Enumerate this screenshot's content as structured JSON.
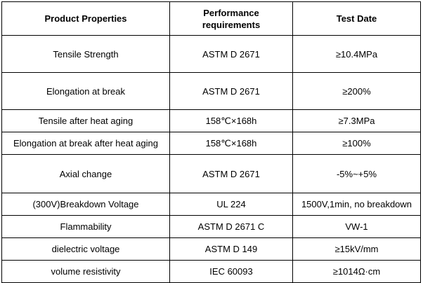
{
  "table": {
    "headers": {
      "col1": "Product Properties",
      "col2_line1": "Performance",
      "col2_line2": "requirements",
      "col3": "Test Date"
    },
    "rows": [
      {
        "property": "Tensile Strength",
        "requirement": "ASTM D 2671",
        "test": "≥10.4MPa"
      },
      {
        "property": "Elongation at break",
        "requirement": "ASTM D 2671",
        "test": "≥200%"
      },
      {
        "property": "Tensile after heat aging",
        "requirement": "158℃×168h",
        "test": "≥7.3MPa"
      },
      {
        "property": "Elongation at break after heat aging",
        "requirement": "158℃×168h",
        "test": "≥100%"
      },
      {
        "property": "Axial change",
        "requirement": "ASTM D 2671",
        "test": "-5%~+5%"
      },
      {
        "property": "(300V)Breakdown Voltage",
        "requirement": "UL 224",
        "test": "1500V,1min, no breakdown"
      },
      {
        "property": "Flammability",
        "requirement": "ASTM D 2671 C",
        "test": "VW-1"
      },
      {
        "property": "dielectric voltage",
        "requirement": "ASTM D 149",
        "test": "≥15kV/mm"
      },
      {
        "property": "volume resistivity",
        "requirement": "IEC 60093",
        "test": "≥1014Ω·cm"
      }
    ]
  }
}
